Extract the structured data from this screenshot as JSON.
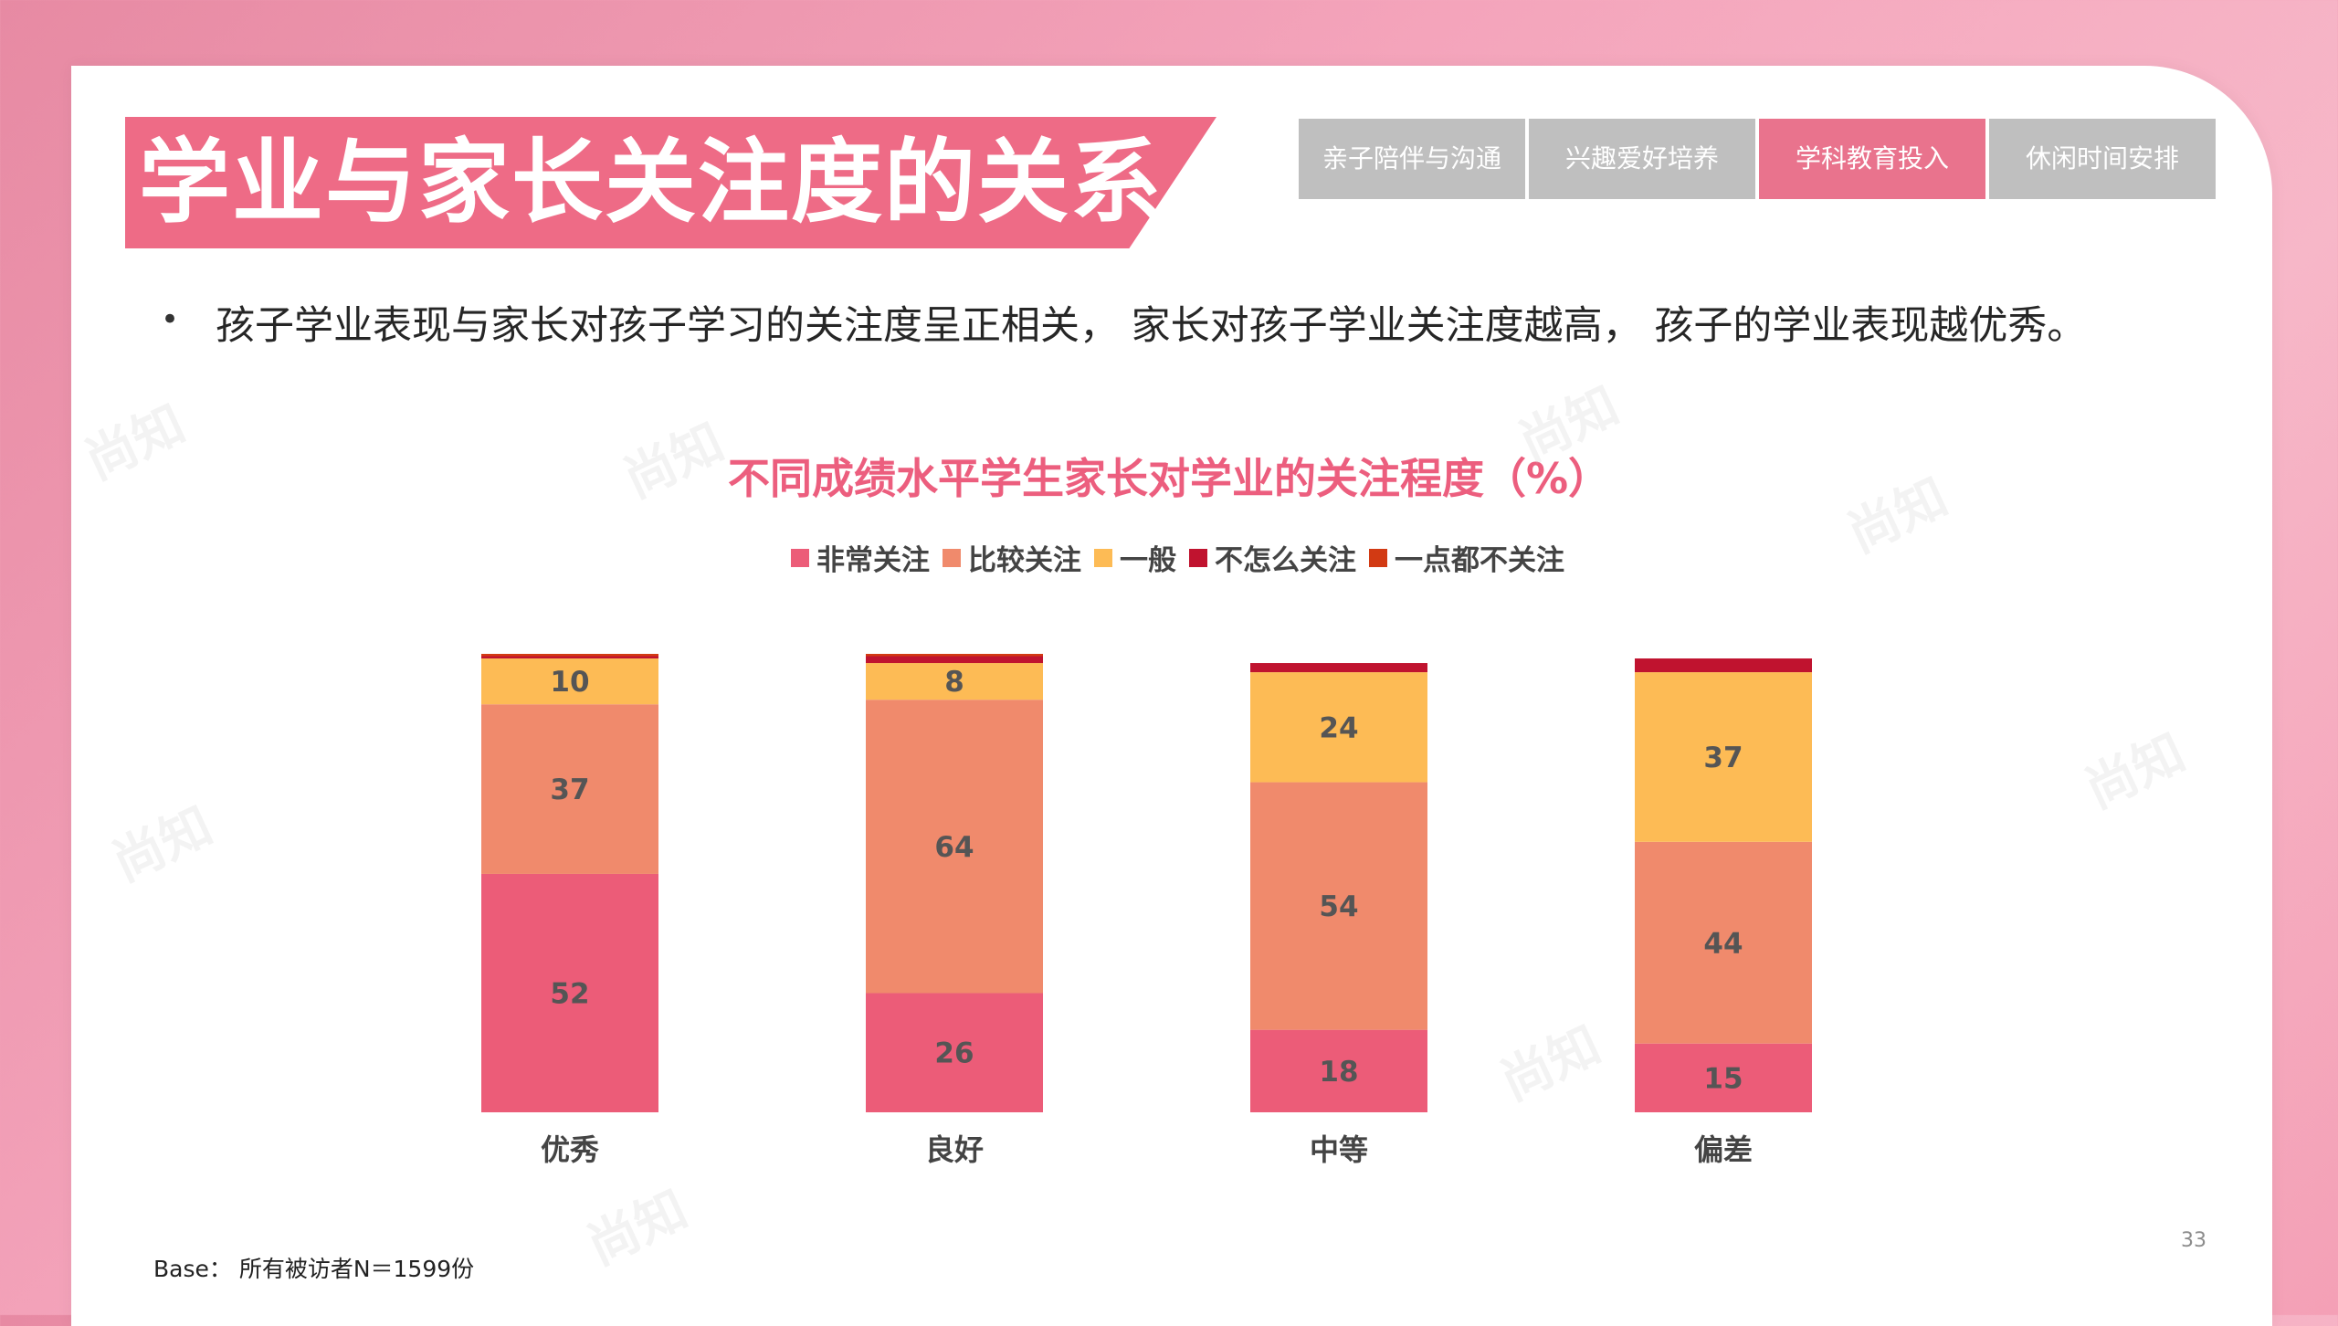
{
  "title": "学业与家长关注度的关系",
  "tabs": [
    {
      "label": "亲子陪伴与沟通",
      "active": false
    },
    {
      "label": "兴趣爱好培养",
      "active": false
    },
    {
      "label": "学科教育投入",
      "active": true
    },
    {
      "label": "休闲时间安排",
      "active": false
    }
  ],
  "bullet": "孩子学业表现与家长对孩子学习的关注度呈正相关， 家长对孩子学业关注度越高， 孩子的学业表现越优秀。",
  "base_note": "Base： 所有被访者N＝1599份",
  "page_number": "33",
  "watermark": "尚知",
  "colors": {
    "accent": "#ee6b86",
    "tab_active": "#e9738d",
    "tab_inactive": "#bfbfbf"
  },
  "chart_data": {
    "type": "bar",
    "stacked": true,
    "title": "不同成绩水平学生家长对学业的关注程度（%）",
    "categories": [
      "优秀",
      "良好",
      "中等",
      "偏差"
    ],
    "series": [
      {
        "name": "非常关注",
        "color": "#ec5c78",
        "values": [
          52,
          26,
          18,
          15
        ]
      },
      {
        "name": "比较关注",
        "color": "#f08a6c",
        "values": [
          37,
          64,
          54,
          44
        ]
      },
      {
        "name": "一般",
        "color": "#fdbb55",
        "values": [
          10,
          8,
          24,
          37
        ]
      },
      {
        "name": "不怎么关注",
        "color": "#c0132f",
        "values": [
          0.5,
          1.5,
          2,
          3
        ]
      },
      {
        "name": "一点都不关注",
        "color": "#d23a13",
        "values": [
          0.5,
          0.5,
          0,
          0
        ]
      }
    ],
    "labeled_series": [
      "非常关注",
      "比较关注",
      "一般"
    ],
    "legend_position": "top",
    "grid": false,
    "ylim": [
      0,
      100
    ]
  }
}
